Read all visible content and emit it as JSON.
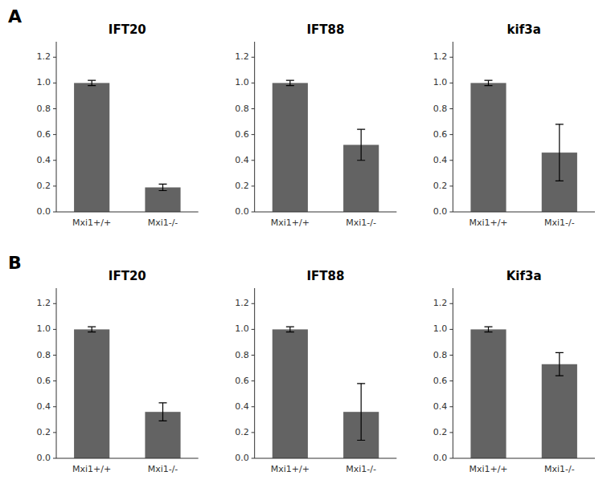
{
  "row_labels": [
    "A",
    "B"
  ],
  "chart_data": [
    {
      "type": "bar",
      "title": "IFT20",
      "categories": [
        "Mxi1+/+",
        "Mxi1-/-"
      ],
      "values": [
        1.0,
        0.19
      ],
      "errors": [
        0.02,
        0.025
      ],
      "color": "#636363",
      "ylim": [
        0,
        1.32
      ],
      "yticks": [
        {
          "value": 0,
          "label": "0.0"
        },
        0.2,
        0.4,
        0.6,
        0.8,
        {
          "value": 1.0,
          "label": "1.0"
        },
        1.2
      ],
      "grid": false
    },
    {
      "type": "bar",
      "title": "IFT88",
      "categories": [
        "Mxi1+/+",
        "Mxi1-/-"
      ],
      "values": [
        1.0,
        0.52
      ],
      "errors": [
        0.02,
        0.12
      ],
      "color": "#636363",
      "ylim": [
        0,
        1.32
      ],
      "yticks": [
        {
          "value": 0,
          "label": "0.0"
        },
        0.2,
        0.4,
        0.6,
        0.8,
        {
          "value": 1.0,
          "label": "1.0"
        },
        1.2
      ],
      "grid": false
    },
    {
      "type": "bar",
      "title": "kif3a",
      "categories": [
        "Mxi1+/+",
        "Mxi1-/-"
      ],
      "values": [
        1.0,
        0.46
      ],
      "errors": [
        0.02,
        0.22
      ],
      "color": "#636363",
      "ylim": [
        0,
        1.32
      ],
      "yticks": [
        {
          "value": 0,
          "label": "0.0"
        },
        0.2,
        0.4,
        0.6,
        0.8,
        {
          "value": 1.0,
          "label": "1.0"
        },
        1.2
      ],
      "grid": false
    },
    {
      "type": "bar",
      "title": "IFT20",
      "categories": [
        "Mxi1+/+",
        "Mxi1-/-"
      ],
      "values": [
        1.0,
        0.36
      ],
      "errors": [
        0.02,
        0.07
      ],
      "color": "#636363",
      "ylim": [
        0,
        1.32
      ],
      "yticks": [
        {
          "value": 0,
          "label": "0.0"
        },
        0.2,
        0.4,
        0.6,
        0.8,
        {
          "value": 1.0,
          "label": "1.0"
        },
        1.2
      ],
      "grid": false
    },
    {
      "type": "bar",
      "title": "IFT88",
      "categories": [
        "Mxi1+/+",
        "Mxi1-/-"
      ],
      "values": [
        1.0,
        0.36
      ],
      "errors": [
        0.02,
        0.22
      ],
      "color": "#636363",
      "ylim": [
        0,
        1.32
      ],
      "yticks": [
        {
          "value": 0,
          "label": "0.0"
        },
        0.2,
        0.4,
        0.6,
        0.8,
        {
          "value": 1.0,
          "label": "1.0"
        },
        1.2
      ],
      "grid": false
    },
    {
      "type": "bar",
      "title": "Kif3a",
      "categories": [
        "Mxi1+/+",
        "Mxi1-/-"
      ],
      "values": [
        1.0,
        0.73
      ],
      "errors": [
        0.02,
        0.09
      ],
      "color": "#636363",
      "ylim": [
        0,
        1.32
      ],
      "yticks": [
        {
          "value": 0,
          "label": "0.0"
        },
        0.2,
        0.4,
        0.6,
        0.8,
        {
          "value": 1.0,
          "label": "1.0"
        },
        1.2
      ],
      "grid": false
    }
  ]
}
